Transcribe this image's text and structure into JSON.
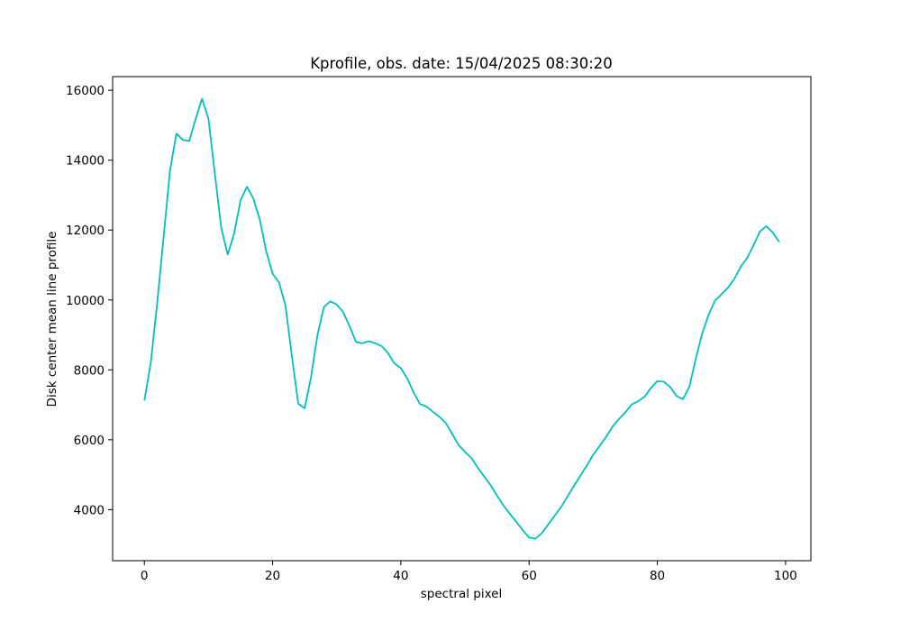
{
  "chart_data": {
    "type": "line",
    "title": "Kprofile, obs. date: 15/04/2025 08:30:20",
    "x_label": "spectral pixel",
    "y_label": "Disk center mean line profile",
    "x": [
      0,
      1,
      2,
      3,
      4,
      5,
      6,
      7,
      8,
      9,
      10,
      11,
      12,
      13,
      14,
      15,
      16,
      17,
      18,
      19,
      20,
      21,
      22,
      23,
      24,
      25,
      26,
      27,
      28,
      29,
      30,
      31,
      32,
      33,
      34,
      35,
      36,
      37,
      38,
      39,
      40,
      41,
      42,
      43,
      44,
      45,
      46,
      47,
      48,
      49,
      50,
      51,
      52,
      53,
      54,
      55,
      56,
      57,
      58,
      59,
      60,
      61,
      62,
      63,
      64,
      65,
      66,
      67,
      68,
      69,
      70,
      71,
      72,
      73,
      74,
      75,
      76,
      77,
      78,
      79,
      80,
      81,
      82,
      83,
      84,
      85,
      86,
      87,
      88,
      89,
      90,
      91,
      92,
      93,
      94,
      95,
      96,
      97,
      98,
      99
    ],
    "series": [
      {
        "color": "#00bfbf",
        "values": [
          7120,
          8200,
          9900,
          11800,
          13700,
          14760,
          14580,
          14550,
          15180,
          15760,
          15180,
          13600,
          12050,
          11300,
          11900,
          12850,
          13240,
          12900,
          12300,
          11400,
          10750,
          10500,
          9850,
          8400,
          7030,
          6900,
          7800,
          9000,
          9800,
          9960,
          9870,
          9650,
          9250,
          8800,
          8760,
          8820,
          8760,
          8680,
          8480,
          8180,
          8050,
          7750,
          7350,
          7020,
          6950,
          6800,
          6660,
          6480,
          6170,
          5850,
          5650,
          5480,
          5200,
          4950,
          4700,
          4400,
          4120,
          3880,
          3650,
          3420,
          3200,
          3170,
          3330,
          3580,
          3830,
          4080,
          4380,
          4680,
          4970,
          5260,
          5570,
          5820,
          6080,
          6370,
          6590,
          6780,
          7010,
          7100,
          7230,
          7480,
          7680,
          7660,
          7510,
          7250,
          7160,
          7520,
          8320,
          9040,
          9580,
          9980,
          10160,
          10350,
          10600,
          10950,
          11200,
          11560,
          11960,
          12110,
          11930,
          11660
        ]
      }
    ],
    "xlim": [
      -4.95,
      103.95
    ],
    "ylim": [
      2540,
      16390
    ],
    "xticks": [
      0,
      20,
      40,
      60,
      80,
      100
    ],
    "yticks": [
      4000,
      6000,
      8000,
      10000,
      12000,
      14000,
      16000
    ]
  }
}
